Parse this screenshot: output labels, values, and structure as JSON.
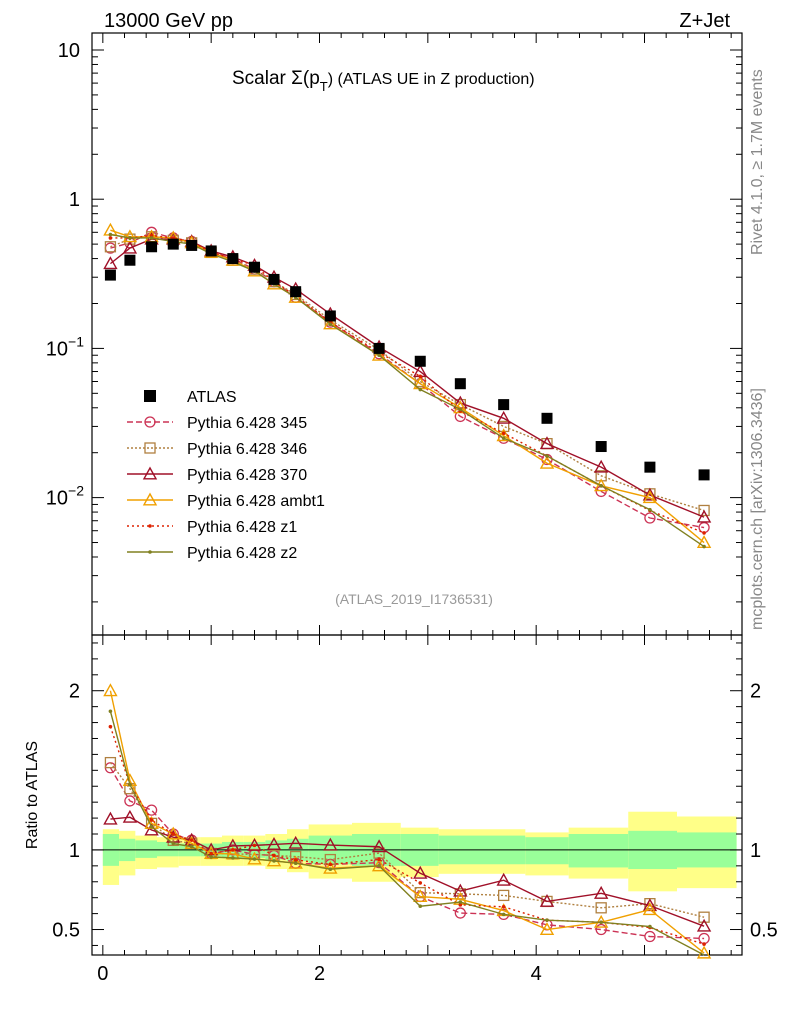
{
  "header": {
    "energy_label": "13000 GeV pp",
    "process_label": "Z+Jet",
    "title_prefix": "Scalar Σ(p",
    "title_sub": "T",
    "title_suffix": ") (ATLAS UE in Z production)",
    "side_version": "Rivet 4.1.0, ≥ 1.7M events",
    "side_url": "mcplots.cern.ch [arXiv:1306.3436]",
    "analysis_id": "(ATLAS_2019_I1736531)"
  },
  "ratio_label": "Ratio to ATLAS",
  "chart_data": {
    "type": "line",
    "main": {
      "yscale": "log",
      "ylim": [
        0.0012,
        13
      ],
      "xlim": [
        -0.1,
        5.9
      ],
      "ytick_labels": [
        "10",
        "1",
        "10^-1",
        "10^-2"
      ],
      "ytick_values": [
        10,
        1,
        0.1,
        0.01
      ]
    },
    "ratio": {
      "ylim": [
        0.34,
        2.35
      ],
      "ytick_values": [
        0.5,
        1,
        2
      ],
      "ytick_labels": [
        "0.5",
        "1",
        "2"
      ]
    },
    "xticks": [
      0,
      2,
      4
    ],
    "xtick_labels": [
      "0",
      "2",
      "4"
    ],
    "bins": [
      [
        0.0,
        0.15
      ],
      [
        0.15,
        0.3
      ],
      [
        0.3,
        0.5
      ],
      [
        0.5,
        0.7
      ],
      [
        0.7,
        0.9
      ],
      [
        0.9,
        1.1
      ],
      [
        1.1,
        1.3
      ],
      [
        1.3,
        1.5
      ],
      [
        1.5,
        1.7
      ],
      [
        1.7,
        1.9
      ],
      [
        1.9,
        2.3
      ],
      [
        2.3,
        2.75
      ],
      [
        2.75,
        3.1
      ],
      [
        3.1,
        3.5
      ],
      [
        3.5,
        3.9
      ],
      [
        3.9,
        4.3
      ],
      [
        4.3,
        4.85
      ],
      [
        4.85,
        5.3
      ],
      [
        5.3,
        5.85
      ]
    ],
    "x": [
      0.07,
      0.25,
      0.45,
      0.65,
      0.82,
      1.0,
      1.2,
      1.4,
      1.58,
      1.78,
      2.1,
      2.55,
      2.93,
      3.3,
      3.7,
      4.1,
      4.6,
      5.05,
      5.55
    ],
    "atlas": {
      "name": "ATLAS",
      "color": "#000000",
      "values": [
        0.31,
        0.39,
        0.48,
        0.5,
        0.49,
        0.45,
        0.4,
        0.35,
        0.29,
        0.24,
        0.165,
        0.1,
        0.082,
        0.058,
        0.042,
        0.034,
        0.022,
        0.016,
        0.0142
      ],
      "band_inner": [
        [
          0.9,
          1.1
        ],
        [
          0.93,
          1.07
        ],
        [
          0.95,
          1.06
        ],
        [
          0.96,
          1.05
        ],
        [
          0.96,
          1.04
        ],
        [
          0.96,
          1.04
        ],
        [
          0.95,
          1.05
        ],
        [
          0.95,
          1.05
        ],
        [
          0.94,
          1.06
        ],
        [
          0.93,
          1.07
        ],
        [
          0.91,
          1.09
        ],
        [
          0.9,
          1.1
        ],
        [
          0.9,
          1.1
        ],
        [
          0.91,
          1.09
        ],
        [
          0.91,
          1.09
        ],
        [
          0.91,
          1.08
        ],
        [
          0.89,
          1.1
        ],
        [
          0.88,
          1.12
        ],
        [
          0.89,
          1.11
        ]
      ],
      "band_outer": [
        [
          0.78,
          1.13
        ],
        [
          0.84,
          1.12
        ],
        [
          0.88,
          1.09
        ],
        [
          0.89,
          1.08
        ],
        [
          0.9,
          1.08
        ],
        [
          0.9,
          1.08
        ],
        [
          0.9,
          1.09
        ],
        [
          0.9,
          1.09
        ],
        [
          0.88,
          1.1
        ],
        [
          0.86,
          1.13
        ],
        [
          0.82,
          1.16
        ],
        [
          0.8,
          1.17
        ],
        [
          0.83,
          1.14
        ],
        [
          0.85,
          1.13
        ],
        [
          0.85,
          1.13
        ],
        [
          0.84,
          1.11
        ],
        [
          0.82,
          1.14
        ],
        [
          0.74,
          1.24
        ],
        [
          0.76,
          1.21
        ]
      ],
      "band_inner_color": "#99ff99",
      "band_outer_color": "#ffff88"
    },
    "series": [
      {
        "name": "Pythia 6.428 345",
        "color": "#cc3355",
        "dash": "6,3",
        "marker": "circle",
        "values": [
          0.47,
          0.51,
          0.6,
          0.55,
          0.52,
          0.44,
          0.4,
          0.34,
          0.28,
          0.22,
          0.15,
          0.092,
          0.058,
          0.035,
          0.025,
          0.018,
          0.011,
          0.0073,
          0.0063
        ]
      },
      {
        "name": "Pythia 6.428 346",
        "color": "#b08040",
        "dash": "2,2",
        "marker": "square",
        "values": [
          0.48,
          0.54,
          0.56,
          0.53,
          0.51,
          0.44,
          0.39,
          0.34,
          0.28,
          0.23,
          0.155,
          0.098,
          0.06,
          0.042,
          0.03,
          0.023,
          0.014,
          0.0106,
          0.0082
        ]
      },
      {
        "name": "Pythia 6.428 370",
        "color": "#a01028",
        "dash": "",
        "marker": "triangle",
        "values": [
          0.37,
          0.47,
          0.54,
          0.54,
          0.52,
          0.45,
          0.41,
          0.36,
          0.3,
          0.25,
          0.17,
          0.102,
          0.07,
          0.043,
          0.034,
          0.023,
          0.016,
          0.0104,
          0.0074
        ]
      },
      {
        "name": "Pythia 6.428 ambt1",
        "color": "#f0a000",
        "dash": "",
        "marker": "triangle",
        "values": [
          0.62,
          0.56,
          0.56,
          0.55,
          0.51,
          0.44,
          0.39,
          0.33,
          0.27,
          0.22,
          0.146,
          0.09,
          0.058,
          0.04,
          0.026,
          0.017,
          0.012,
          0.01,
          0.005
        ]
      },
      {
        "name": "Pythia 6.428 z1",
        "color": "#dd2200",
        "dash": "2,3",
        "marker": "dot",
        "values": [
          0.55,
          0.55,
          0.57,
          0.55,
          0.52,
          0.44,
          0.4,
          0.36,
          0.28,
          0.225,
          0.15,
          0.094,
          0.065,
          0.038,
          0.027,
          0.019,
          0.012,
          0.0082,
          0.0058
        ]
      },
      {
        "name": "Pythia 6.428 z2",
        "color": "#808020",
        "dash": "",
        "marker": "dot",
        "values": [
          0.58,
          0.55,
          0.55,
          0.52,
          0.5,
          0.43,
          0.38,
          0.33,
          0.27,
          0.22,
          0.145,
          0.09,
          0.053,
          0.039,
          0.025,
          0.019,
          0.012,
          0.0083,
          0.0047
        ]
      }
    ]
  }
}
